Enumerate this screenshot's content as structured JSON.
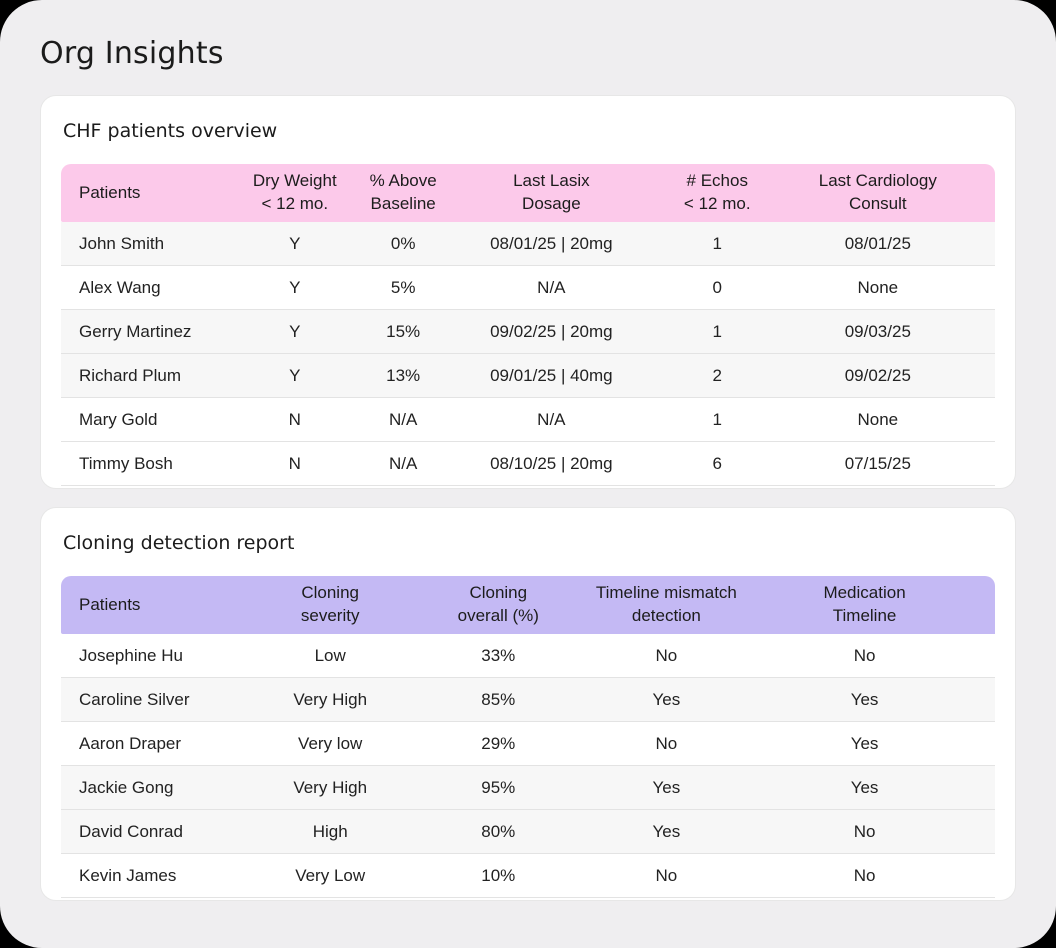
{
  "page": {
    "title": "Org Insights"
  },
  "colors": {
    "page_background": "#efeef0",
    "card_background": "#ffffff",
    "chf_header_bg": "#fcc9ea",
    "cloning_header_bg": "#c4b9f4",
    "shaded_row_bg": "#f7f7f7",
    "plain_row_bg": "#ffffff",
    "text": "#1e1e1e"
  },
  "tables": [
    {
      "title": "CHF patients overview",
      "columns": [
        "Patients",
        "Dry Weight\n< 12 mo.",
        "% Above\nBaseline",
        "Last Lasix\nDosage",
        "# Echos\n< 12 mo.",
        "Last Cardiology\nConsult"
      ],
      "rows": [
        {
          "shaded": true,
          "cells": [
            "John Smith",
            "Y",
            "0%",
            "08/01/25 | 20mg",
            "1",
            "08/01/25"
          ]
        },
        {
          "shaded": false,
          "cells": [
            "Alex Wang",
            "Y",
            "5%",
            "N/A",
            "0",
            "None"
          ]
        },
        {
          "shaded": true,
          "cells": [
            "Gerry Martinez",
            "Y",
            "15%",
            "09/02/25 | 20mg",
            "1",
            "09/03/25"
          ]
        },
        {
          "shaded": true,
          "cells": [
            "Richard Plum",
            "Y",
            "13%",
            "09/01/25 | 40mg",
            "2",
            "09/02/25"
          ]
        },
        {
          "shaded": false,
          "cells": [
            "Mary Gold",
            "N",
            "N/A",
            "N/A",
            "1",
            "None"
          ]
        },
        {
          "shaded": false,
          "cells": [
            "Timmy Bosh",
            "N",
            "N/A",
            "08/10/25 | 20mg",
            "6",
            "07/15/25"
          ]
        }
      ]
    },
    {
      "title": "Cloning detection report",
      "columns": [
        "Patients",
        "Cloning\nseverity",
        "Cloning\noverall (%)",
        "Timeline mismatch\ndetection",
        "Medication\nTimeline"
      ],
      "rows": [
        {
          "shaded": false,
          "cells": [
            "Josephine Hu",
            "Low",
            "33%",
            "No",
            "No"
          ]
        },
        {
          "shaded": true,
          "cells": [
            "Caroline Silver",
            "Very High",
            "85%",
            "Yes",
            "Yes"
          ]
        },
        {
          "shaded": false,
          "cells": [
            "Aaron Draper",
            "Very low",
            "29%",
            "No",
            "Yes"
          ]
        },
        {
          "shaded": true,
          "cells": [
            "Jackie Gong",
            "Very High",
            "95%",
            "Yes",
            "Yes"
          ]
        },
        {
          "shaded": true,
          "cells": [
            "David Conrad",
            "High",
            "80%",
            "Yes",
            "No"
          ]
        },
        {
          "shaded": false,
          "cells": [
            "Kevin James",
            "Very Low",
            "10%",
            "No",
            "No"
          ]
        }
      ]
    }
  ]
}
